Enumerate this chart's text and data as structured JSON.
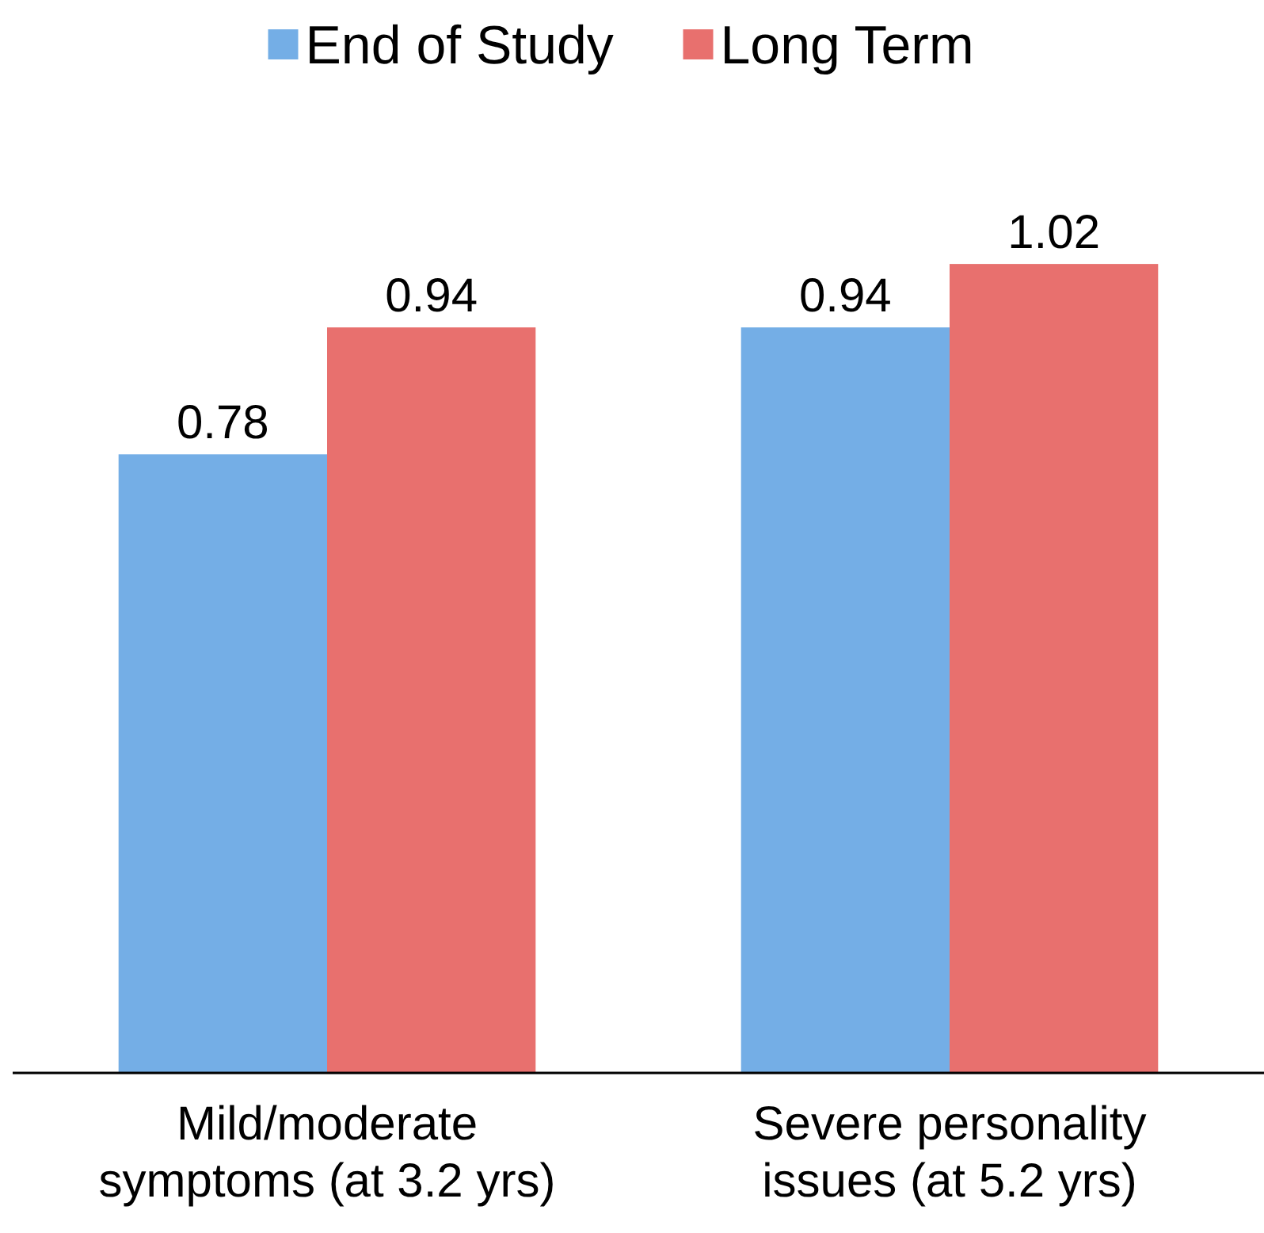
{
  "chart_data": {
    "type": "bar",
    "categories": [
      "Mild/moderate symptoms (at 3.2 yrs)",
      "Severe personality issues (at 5.2 yrs)"
    ],
    "series": [
      {
        "name": "End of Study",
        "color": "#74aee6",
        "values": [
          0.78,
          0.94
        ]
      },
      {
        "name": "Long Term",
        "color": "#e8706e",
        "values": [
          0.94,
          1.02
        ]
      }
    ],
    "data_labels": true,
    "legend": "top",
    "grid": false
  }
}
